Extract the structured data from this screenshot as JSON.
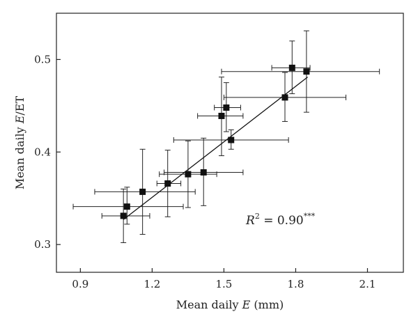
{
  "chart_data": {
    "type": "scatter",
    "xlabel": {
      "prefix": "Mean daily ",
      "var": "E",
      "suffix": " (mm)"
    },
    "ylabel": {
      "prefix": "Mean daily ",
      "var": "E",
      "suffix": "/ET"
    },
    "xlim": [
      0.8,
      2.25
    ],
    "ylim": [
      0.27,
      0.55
    ],
    "xticks": [
      "0.9",
      "1.2",
      "1.5",
      "1.8",
      "2.1"
    ],
    "yticks": [
      "0.3",
      "0.4",
      "0.5"
    ],
    "grid": false,
    "annotation": {
      "r": "R",
      "exp": "2",
      "eq": " = 0.90",
      "sig": "***"
    },
    "points": [
      {
        "x": 1.08,
        "y": 0.331,
        "xerr": [
          0.99,
          1.19
        ],
        "yerr": [
          0.302,
          0.36
        ]
      },
      {
        "x": 1.095,
        "y": 0.341,
        "xerr": [
          0.87,
          1.33
        ],
        "yerr": [
          0.322,
          0.362
        ]
      },
      {
        "x": 1.16,
        "y": 0.357,
        "xerr": [
          0.96,
          1.38
        ],
        "yerr": [
          0.311,
          0.403
        ]
      },
      {
        "x": 1.265,
        "y": 0.366,
        "xerr": [
          1.22,
          1.32
        ],
        "yerr": [
          0.33,
          0.402
        ]
      },
      {
        "x": 1.35,
        "y": 0.376,
        "xerr": [
          1.23,
          1.47
        ],
        "yerr": [
          0.34,
          0.412
        ]
      },
      {
        "x": 1.415,
        "y": 0.378,
        "xerr": [
          1.25,
          1.58
        ],
        "yerr": [
          0.342,
          0.415
        ]
      },
      {
        "x": 1.49,
        "y": 0.439,
        "xerr": [
          1.39,
          1.58
        ],
        "yerr": [
          0.396,
          0.481
        ]
      },
      {
        "x": 1.51,
        "y": 0.448,
        "xerr": [
          1.46,
          1.57
        ],
        "yerr": [
          0.422,
          0.475
        ]
      },
      {
        "x": 1.53,
        "y": 0.413,
        "xerr": [
          1.29,
          1.77
        ],
        "yerr": [
          0.403,
          0.424
        ]
      },
      {
        "x": 1.755,
        "y": 0.459,
        "xerr": [
          1.5,
          2.01
        ],
        "yerr": [
          0.433,
          0.486
        ]
      },
      {
        "x": 1.785,
        "y": 0.491,
        "xerr": [
          1.7,
          1.86
        ],
        "yerr": [
          0.463,
          0.52
        ]
      },
      {
        "x": 1.845,
        "y": 0.487,
        "xerr": [
          1.49,
          2.15
        ],
        "yerr": [
          0.443,
          0.531
        ]
      }
    ],
    "fit_line": {
      "x": [
        1.08,
        1.85
      ],
      "y": [
        0.327,
        0.481
      ]
    }
  }
}
